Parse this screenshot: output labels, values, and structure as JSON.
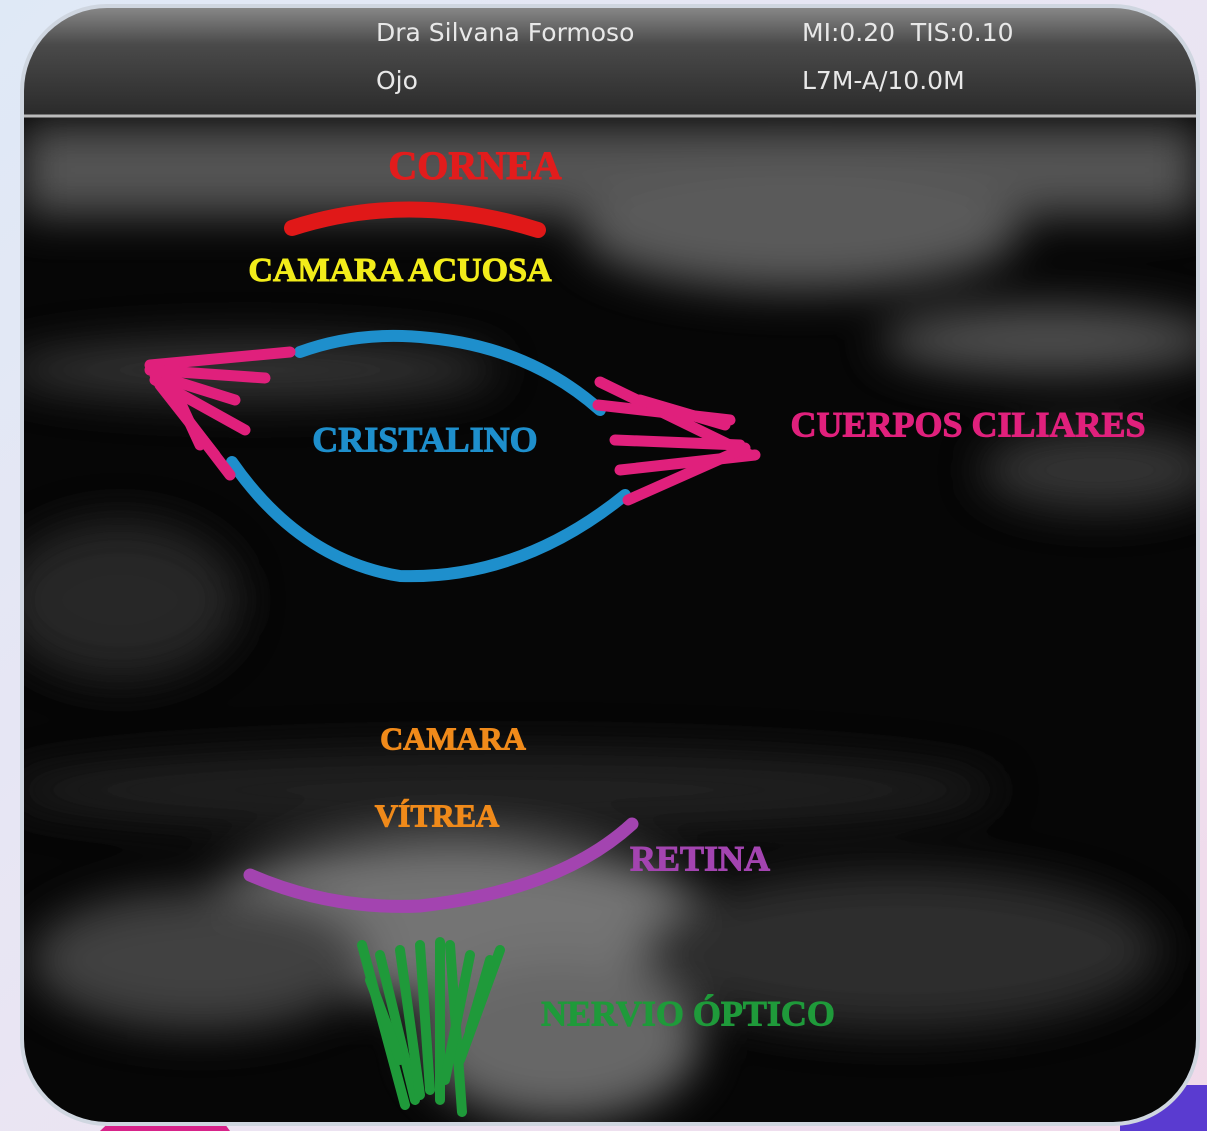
{
  "header": {
    "operator": "Dra Silvana Formoso",
    "study": "Ojo",
    "indices": "MI:0.20  TIS:0.10",
    "probe": "L7M-A/10.0M"
  },
  "labels": {
    "cornea": "CORNEA",
    "anterior_chamber": "CAMARA ACUOSA",
    "lens": "CRISTALINO",
    "ciliary_bodies": "CUERPOS CILIARES",
    "vitreous_1": "CAMARA",
    "vitreous_2": "VÍTREA",
    "retina": "RETINA",
    "optic_nerve": "NERVIO ÓPTICO"
  }
}
